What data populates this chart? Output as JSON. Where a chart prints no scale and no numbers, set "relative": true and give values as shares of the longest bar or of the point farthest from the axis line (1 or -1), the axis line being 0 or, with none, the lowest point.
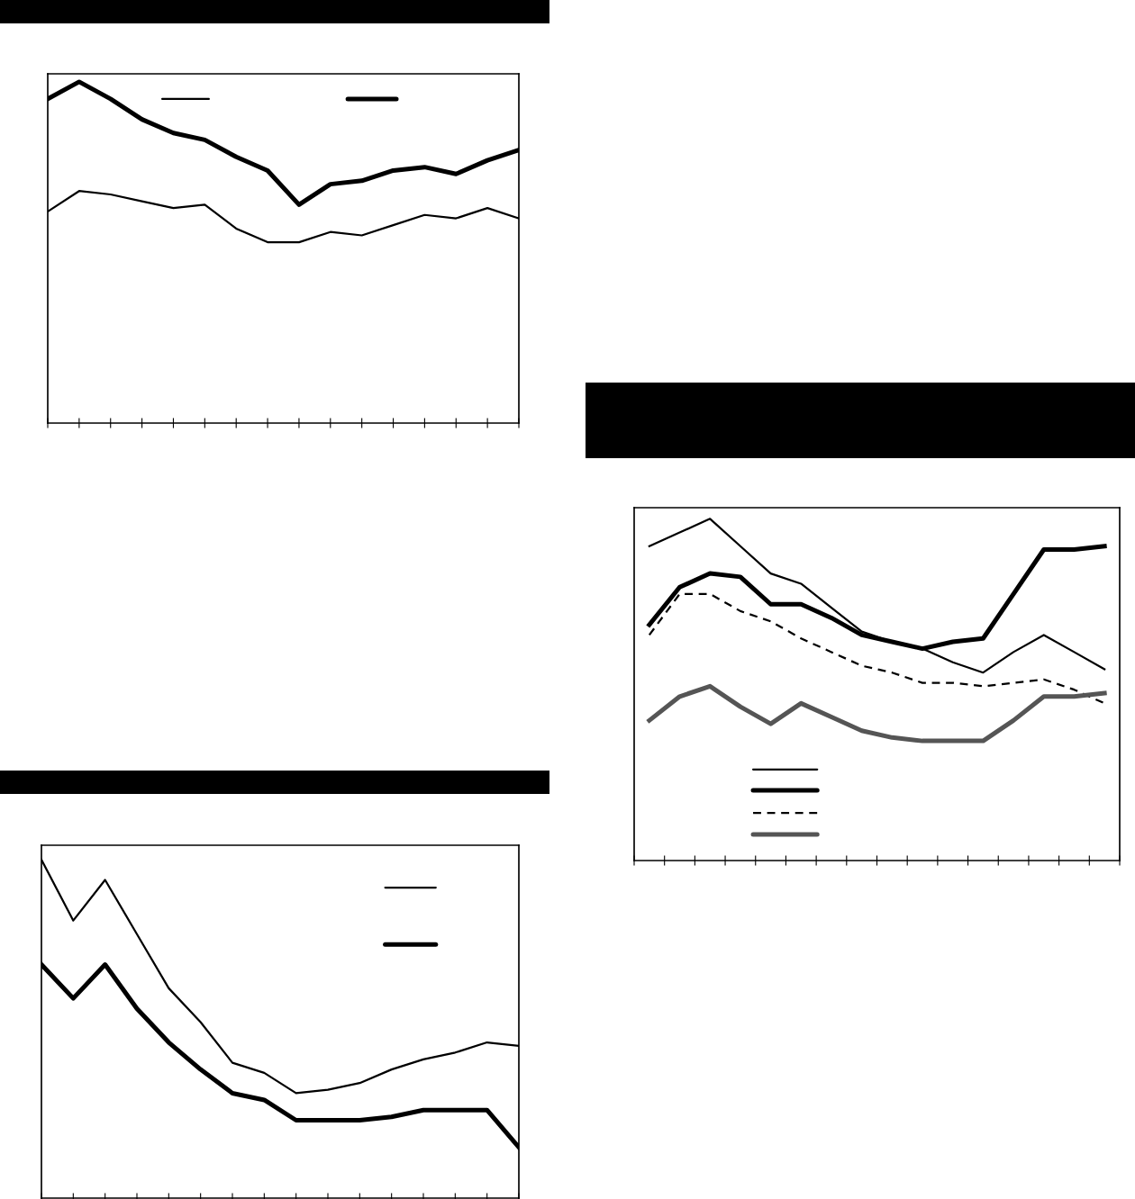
{
  "chart_data": [
    {
      "type": "line",
      "relative": true,
      "categories": [
        null,
        null,
        null,
        null,
        null,
        null,
        null,
        null,
        null,
        null,
        null,
        null,
        null,
        null,
        null,
        null
      ],
      "grid": false,
      "marker": "none",
      "series": [
        {
          "color": "#000000",
          "line_style": "solid",
          "values": [
            0.62,
            0.68,
            0.67,
            0.65,
            0.63,
            0.64,
            0.57,
            0.53,
            0.53,
            0.56,
            0.55,
            0.58,
            0.61,
            0.6,
            0.63,
            0.6
          ]
        },
        {
          "color": "#000000",
          "line_style": "solid",
          "values": [
            0.95,
            1,
            0.95,
            0.89,
            0.85,
            0.83,
            0.78,
            0.74,
            0.64,
            0.7,
            0.71,
            0.74,
            0.75,
            0.73,
            0.77,
            0.8
          ]
        }
      ]
    },
    {
      "type": "line",
      "relative": true,
      "categories": [
        null,
        null,
        null,
        null,
        null,
        null,
        null,
        null,
        null,
        null,
        null,
        null,
        null,
        null,
        null,
        null
      ],
      "grid": false,
      "marker": "none",
      "series": [
        {
          "color": "#000000",
          "line_style": "solid",
          "values": [
            0.92,
            0.96,
            1,
            0.92,
            0.84,
            0.81,
            0.74,
            0.67,
            0.64,
            0.62,
            0.58,
            0.55,
            0.61,
            0.66,
            0.61,
            0.56
          ]
        },
        {
          "color": "#000000",
          "line_style": "solid",
          "values": [
            0.69,
            0.8,
            0.84,
            0.83,
            0.75,
            0.75,
            0.71,
            0.66,
            0.64,
            0.62,
            0.64,
            0.65,
            0.78,
            0.91,
            0.91,
            0.92
          ]
        },
        {
          "color": "#000000",
          "line_style": "dashed",
          "values": [
            0.66,
            0.78,
            0.78,
            0.73,
            0.7,
            0.65,
            0.61,
            0.57,
            0.55,
            0.52,
            0.52,
            0.51,
            0.52,
            0.53,
            0.5,
            0.46
          ]
        },
        {
          "color": "#555555",
          "line_style": "solid",
          "values": [
            0.41,
            0.48,
            0.51,
            0.45,
            0.4,
            0.46,
            0.42,
            0.38,
            0.36,
            0.35,
            0.35,
            0.35,
            0.41,
            0.48,
            0.48,
            0.49
          ]
        }
      ]
    },
    {
      "type": "line",
      "relative": true,
      "categories": [
        null,
        null,
        null,
        null,
        null,
        null,
        null,
        null,
        null,
        null,
        null,
        null,
        null,
        null,
        null,
        null
      ],
      "grid": false,
      "marker": "none",
      "series": [
        {
          "color": "#000000",
          "line_style": "solid",
          "values": [
            1,
            0.82,
            0.94,
            0.78,
            0.62,
            0.52,
            0.4,
            0.37,
            0.31,
            0.32,
            0.34,
            0.38,
            0.41,
            0.43,
            0.46,
            0.45
          ]
        },
        {
          "color": "#000000",
          "line_style": "solid",
          "values": [
            0.69,
            0.59,
            0.69,
            0.56,
            0.46,
            0.38,
            0.31,
            0.29,
            0.23,
            0.23,
            0.23,
            0.24,
            0.26,
            0.26,
            0.26,
            0.15
          ]
        }
      ]
    }
  ]
}
